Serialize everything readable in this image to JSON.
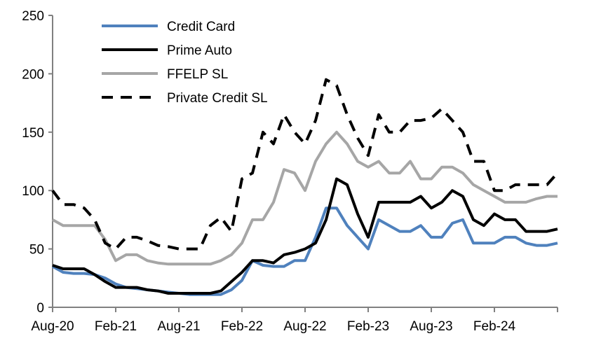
{
  "chart_data": {
    "type": "line",
    "title": "",
    "xlabel": "",
    "ylabel": "",
    "ylim": [
      0,
      250
    ],
    "yticks": [
      0,
      50,
      100,
      150,
      200,
      250
    ],
    "xtick_labels": [
      "Aug-20",
      "Feb-21",
      "Aug-21",
      "Feb-22",
      "Aug-22",
      "Feb-23",
      "Aug-23",
      "Feb-24"
    ],
    "x": [
      "Aug-20",
      "Sep-20",
      "Oct-20",
      "Nov-20",
      "Dec-20",
      "Jan-21",
      "Feb-21",
      "Mar-21",
      "Apr-21",
      "May-21",
      "Jun-21",
      "Jul-21",
      "Aug-21",
      "Sep-21",
      "Oct-21",
      "Nov-21",
      "Dec-21",
      "Jan-22",
      "Feb-22",
      "Mar-22",
      "Apr-22",
      "May-22",
      "Jun-22",
      "Jul-22",
      "Aug-22",
      "Sep-22",
      "Oct-22",
      "Nov-22",
      "Dec-22",
      "Jan-23",
      "Feb-23",
      "Mar-23",
      "Apr-23",
      "May-23",
      "Jun-23",
      "Jul-23",
      "Aug-23",
      "Sep-23",
      "Oct-23",
      "Nov-23",
      "Dec-23",
      "Jan-24",
      "Feb-24",
      "Mar-24",
      "Apr-24",
      "May-24",
      "Jun-24",
      "Jul-24",
      "Aug-24"
    ],
    "grid": false,
    "legend": "top-center",
    "series": [
      {
        "name": "Credit Card",
        "color": "#4f81bd",
        "dash": "solid",
        "values": [
          35,
          30,
          29,
          29,
          28,
          25,
          20,
          17,
          16,
          15,
          14,
          13,
          12,
          11,
          11,
          11,
          11,
          15,
          23,
          40,
          36,
          35,
          35,
          40,
          40,
          60,
          85,
          85,
          70,
          60,
          50,
          75,
          70,
          65,
          65,
          70,
          60,
          60,
          72,
          75,
          55,
          55,
          55,
          60,
          60,
          55,
          53,
          53,
          55
        ]
      },
      {
        "name": "Prime Auto",
        "color": "#000000",
        "dash": "solid",
        "values": [
          36,
          33,
          33,
          33,
          28,
          22,
          17,
          17,
          17,
          15,
          14,
          12,
          12,
          12,
          12,
          12,
          14,
          22,
          30,
          40,
          40,
          38,
          45,
          47,
          50,
          55,
          75,
          110,
          105,
          80,
          60,
          90,
          90,
          90,
          90,
          95,
          85,
          90,
          100,
          95,
          75,
          70,
          80,
          75,
          75,
          65,
          65,
          65,
          67
        ]
      },
      {
        "name": "FFELP SL",
        "color": "#a6a6a6",
        "dash": "solid",
        "values": [
          75,
          70,
          70,
          70,
          70,
          58,
          40,
          45,
          45,
          40,
          38,
          37,
          37,
          37,
          37,
          37,
          40,
          45,
          55,
          75,
          75,
          90,
          118,
          115,
          100,
          125,
          140,
          150,
          140,
          125,
          120,
          125,
          115,
          115,
          125,
          110,
          110,
          120,
          120,
          115,
          105,
          100,
          95,
          90,
          90,
          90,
          93,
          95,
          95
        ]
      },
      {
        "name": "Private Credit SL",
        "color": "#000000",
        "dash": "dashed",
        "values": [
          100,
          88,
          88,
          85,
          75,
          55,
          50,
          60,
          60,
          57,
          53,
          52,
          50,
          50,
          50,
          70,
          77,
          65,
          110,
          115,
          150,
          140,
          165,
          150,
          140,
          160,
          195,
          190,
          165,
          145,
          130,
          165,
          150,
          150,
          160,
          160,
          162,
          170,
          160,
          150,
          125,
          125,
          100,
          100,
          105,
          105,
          105,
          105,
          115
        ]
      }
    ]
  }
}
